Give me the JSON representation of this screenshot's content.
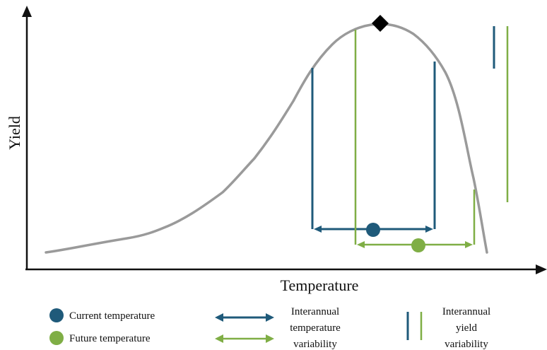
{
  "axes": {
    "x_label": "Temperature",
    "y_label": "Yield"
  },
  "colors": {
    "curve": "#9a9a9a",
    "current": "#1f5a7a",
    "future": "#7fae45",
    "axis": "#111111",
    "optimum_marker": "#000000"
  },
  "legend": {
    "current_temperature": "Current temperature",
    "future_temperature": "Future temperature",
    "temperature_variability": [
      "Interannual",
      "temperature",
      "variability"
    ],
    "yield_variability": [
      "Interannual",
      "yield",
      "variability"
    ]
  },
  "icons": {
    "optimum": "diamond-marker",
    "current_point": "filled-circle",
    "future_point": "filled-circle",
    "range_arrow": "double-headed-arrow"
  }
}
